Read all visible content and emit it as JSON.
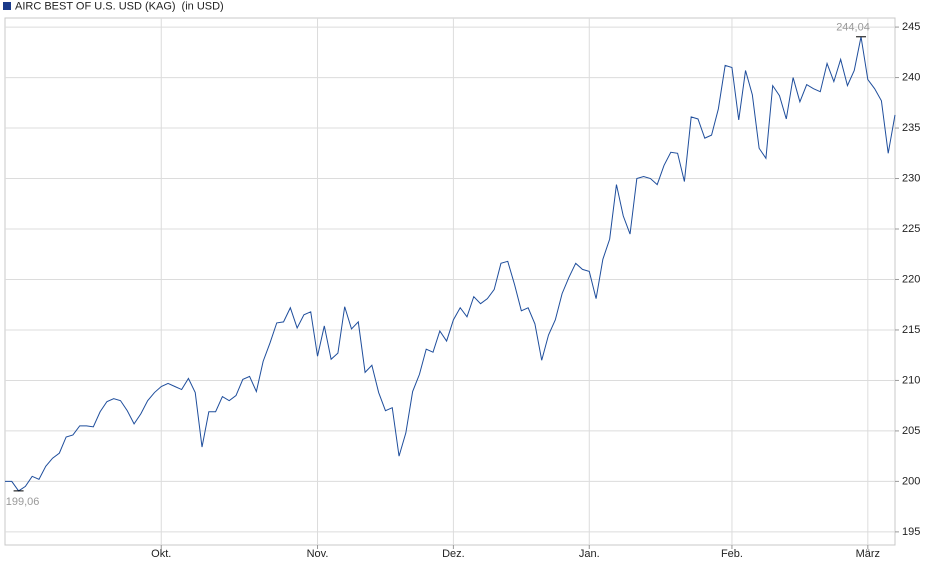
{
  "chart_data": {
    "type": "line",
    "unit_label": "(in USD)",
    "categories": [
      null,
      null,
      null,
      null,
      null,
      null,
      null,
      null,
      null,
      null,
      null,
      null,
      null,
      null,
      null,
      null,
      null,
      null,
      null,
      null,
      null,
      null,
      null,
      "Okt.",
      null,
      null,
      null,
      null,
      null,
      null,
      null,
      null,
      null,
      null,
      null,
      null,
      null,
      null,
      null,
      null,
      null,
      null,
      null,
      null,
      null,
      null,
      "Nov.",
      null,
      null,
      null,
      null,
      null,
      null,
      null,
      null,
      null,
      null,
      null,
      null,
      null,
      null,
      null,
      null,
      null,
      null,
      null,
      "Dez.",
      null,
      null,
      null,
      null,
      null,
      null,
      null,
      null,
      null,
      null,
      null,
      null,
      null,
      null,
      null,
      null,
      null,
      null,
      null,
      "Jan.",
      null,
      null,
      null,
      null,
      null,
      null,
      null,
      null,
      null,
      null,
      null,
      null,
      null,
      null,
      null,
      null,
      null,
      null,
      null,
      null,
      "Feb.",
      null,
      null,
      null,
      null,
      null,
      null,
      null,
      null,
      null,
      null,
      null,
      null,
      null,
      null,
      null,
      null,
      null,
      null,
      null,
      "März",
      null,
      null,
      null,
      null
    ],
    "series": [
      {
        "name": "AIRC BEST OF U.S. USD (KAG)",
        "color": "#1f4e9c",
        "legend_color": "#1a3a8a",
        "values": [
          200.0,
          200.0,
          199.06,
          199.5,
          200.5,
          200.2,
          201.5,
          202.3,
          202.8,
          204.4,
          204.6,
          205.5,
          205.5,
          205.4,
          206.9,
          207.9,
          208.2,
          208.0,
          207.0,
          205.7,
          206.7,
          208.0,
          208.8,
          209.4,
          209.7,
          209.4,
          209.1,
          210.2,
          208.8,
          203.4,
          206.9,
          206.9,
          208.4,
          208.0,
          208.5,
          210.1,
          210.4,
          208.9,
          211.9,
          213.7,
          215.7,
          215.8,
          217.2,
          215.2,
          216.5,
          216.8,
          212.4,
          215.4,
          212.1,
          212.7,
          217.3,
          215.1,
          215.8,
          210.8,
          211.5,
          208.8,
          207.0,
          207.3,
          202.5,
          204.8,
          208.9,
          210.6,
          213.1,
          212.8,
          214.9,
          213.9,
          216.0,
          217.2,
          216.3,
          218.3,
          217.6,
          218.1,
          219.0,
          221.6,
          221.8,
          219.5,
          216.9,
          217.2,
          215.6,
          212.0,
          214.5,
          216.0,
          218.6,
          220.2,
          221.6,
          221.0,
          220.8,
          218.1,
          222.0,
          224.0,
          229.4,
          226.3,
          224.5,
          230.0,
          230.2,
          230.0,
          229.4,
          231.3,
          232.6,
          232.5,
          229.7,
          236.1,
          235.9,
          234.0,
          234.3,
          236.9,
          241.2,
          241.0,
          235.8,
          240.7,
          238.3,
          233.0,
          232.0,
          239.2,
          238.2,
          235.9,
          240.0,
          237.6,
          239.3,
          238.9,
          238.6,
          241.4,
          239.6,
          241.8,
          239.2,
          240.7,
          244.04,
          239.8,
          238.9,
          237.7,
          232.5,
          236.3
        ],
        "value_labels": [
          null,
          null,
          "199,06",
          null,
          null,
          null,
          null,
          null,
          null,
          null,
          null,
          null,
          null,
          null,
          null,
          null,
          null,
          null,
          null,
          null,
          null,
          null,
          null,
          null,
          null,
          null,
          null,
          null,
          null,
          null,
          null,
          null,
          null,
          null,
          null,
          null,
          null,
          null,
          null,
          null,
          null,
          null,
          null,
          null,
          null,
          null,
          null,
          null,
          null,
          null,
          null,
          null,
          null,
          null,
          null,
          null,
          null,
          null,
          null,
          null,
          null,
          null,
          null,
          null,
          null,
          null,
          null,
          null,
          null,
          null,
          null,
          null,
          null,
          null,
          null,
          null,
          null,
          null,
          null,
          null,
          null,
          null,
          null,
          null,
          null,
          null,
          null,
          null,
          null,
          null,
          null,
          null,
          null,
          null,
          null,
          null,
          null,
          null,
          null,
          null,
          null,
          null,
          null,
          null,
          null,
          null,
          null,
          null,
          null,
          null,
          null,
          null,
          null,
          null,
          null,
          null,
          null,
          null,
          null,
          null,
          null,
          null,
          null,
          null,
          null,
          null,
          "244,04",
          null,
          null,
          null,
          null,
          null
        ]
      }
    ],
    "ylim": [
      193.7,
      245.9
    ],
    "yticks": [
      195,
      200,
      205,
      210,
      215,
      220,
      225,
      230,
      235,
      240,
      245
    ],
    "grid": true
  }
}
